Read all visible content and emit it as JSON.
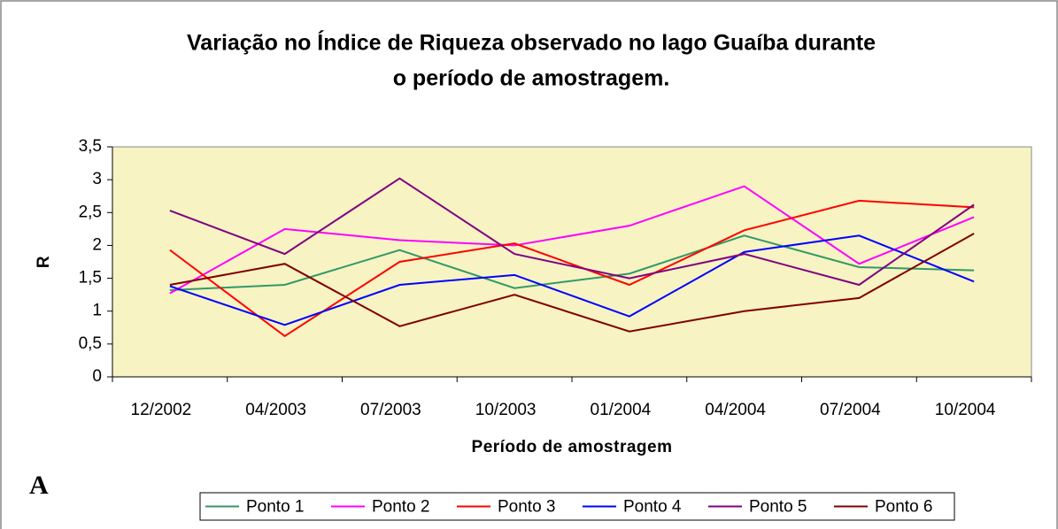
{
  "chart_data": {
    "type": "line",
    "title": [
      "Variação no Índice de Riqueza observado no lago Guaíba durante",
      "o período de amostragem."
    ],
    "x_label": "Período de amostragem",
    "y_label": "R",
    "annotation": "A",
    "categories": [
      "12/2002",
      "04/2003",
      "07/2003",
      "10/2003",
      "01/2004",
      "04/2004",
      "07/2004",
      "10/2004"
    ],
    "series": [
      {
        "name": "Ponto 1",
        "color": "#339966",
        "values": [
          1.32,
          1.4,
          1.93,
          1.35,
          1.57,
          2.15,
          1.67,
          1.62
        ]
      },
      {
        "name": "Ponto 2",
        "color": "#ff00ff",
        "values": [
          1.27,
          2.25,
          2.08,
          2.0,
          2.3,
          2.9,
          1.72,
          2.43
        ]
      },
      {
        "name": "Ponto 3",
        "color": "#ff0000",
        "values": [
          1.93,
          0.62,
          1.75,
          2.03,
          1.4,
          2.23,
          2.68,
          2.58
        ]
      },
      {
        "name": "Ponto 4",
        "color": "#0000ff",
        "values": [
          1.38,
          0.79,
          1.4,
          1.55,
          0.92,
          1.9,
          2.15,
          1.45
        ]
      },
      {
        "name": "Ponto 5",
        "color": "#800080",
        "values": [
          2.53,
          1.87,
          3.02,
          1.87,
          1.5,
          1.87,
          1.4,
          2.62
        ]
      },
      {
        "name": "Ponto 6",
        "color": "#800000",
        "values": [
          1.4,
          1.72,
          0.77,
          1.25,
          0.69,
          1.0,
          1.2,
          2.18
        ]
      }
    ],
    "ylim": [
      0,
      3.5
    ],
    "yticks": [
      0,
      {
        "value": 0.5,
        "label": "0,5"
      },
      1,
      {
        "value": 1.5,
        "label": "1,5"
      },
      2,
      {
        "value": 2.5,
        "label": "2,5"
      },
      3,
      {
        "value": 3.5,
        "label": "3,5"
      }
    ],
    "plot_background": "#f7f3c3",
    "grid": false,
    "legend": "bottom"
  }
}
